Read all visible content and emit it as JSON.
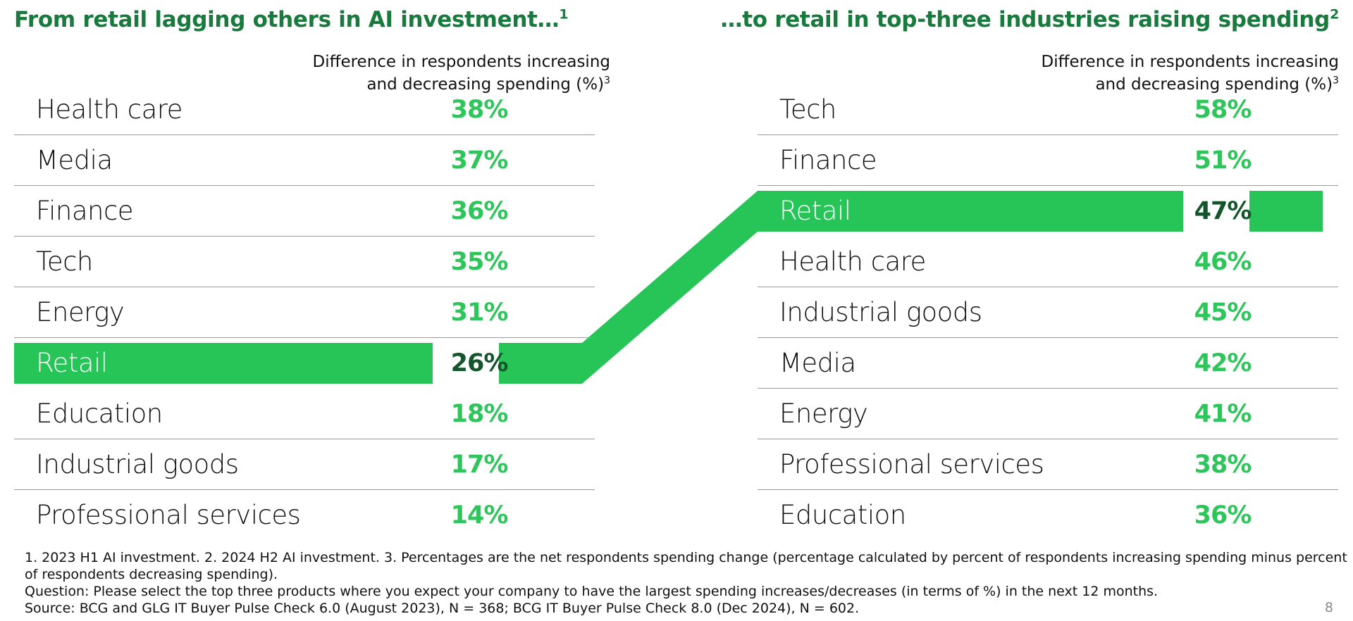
{
  "left": {
    "title": "From retail lagging others in AI investment…",
    "title_sup": "1",
    "subtitle_line1": "Difference in respondents increasing",
    "subtitle_line2": "and decreasing spending (%)",
    "subtitle_sup": "3"
  },
  "right": {
    "title": "…to retail in top-three industries raising spending",
    "title_sup": "2",
    "subtitle_line1": "Difference in respondents increasing",
    "subtitle_line2": "and decreasing spending (%)",
    "subtitle_sup": "3"
  },
  "chart_data": [
    {
      "type": "table",
      "title": "From retail lagging others in AI investment…",
      "value_label": "Difference in respondents increasing and decreasing spending (%)",
      "categories": [
        "Health care",
        "Media",
        "Finance",
        "Tech",
        "Energy",
        "Retail",
        "Education",
        "Industrial goods",
        "Professional services"
      ],
      "values": [
        38,
        37,
        36,
        35,
        31,
        26,
        18,
        17,
        14
      ],
      "display": [
        "38%",
        "37%",
        "36%",
        "35%",
        "31%",
        "26%",
        "18%",
        "17%",
        "14%"
      ],
      "highlight": "Retail"
    },
    {
      "type": "table",
      "title": "…to retail in top-three industries raising spending",
      "value_label": "Difference in respondents increasing and decreasing spending (%)",
      "categories": [
        "Tech",
        "Finance",
        "Retail",
        "Health care",
        "Industrial goods",
        "Media",
        "Energy",
        "Professional services",
        "Education"
      ],
      "values": [
        58,
        51,
        47,
        46,
        45,
        42,
        41,
        38,
        36
      ],
      "display": [
        "58%",
        "51%",
        "47%",
        "46%",
        "45%",
        "42%",
        "41%",
        "38%",
        "36%"
      ],
      "highlight": "Retail"
    }
  ],
  "colors": {
    "title": "#197a3e",
    "value": "#2ec55a",
    "highlight_fill": "#27c457",
    "highlight_value": "#14552b",
    "divider": "#9a9a9a"
  },
  "footnotes": {
    "line1": "1. 2023 H1 AI investment. 2. 2024 H2 AI investment. 3. Percentages are the net respondents spending change (percentage calculated by percent of respondents increasing spending minus percent",
    "line2": "of respondents decreasing spending).",
    "line3": "Question: Please select the top three products where you expect your company to have the largest spending increases/decreases (in terms of %) in the next 12 months.",
    "line4": "Source: BCG and GLG IT Buyer Pulse Check 6.0 (August 2023), N = 368; BCG IT Buyer Pulse Check 8.0 (Dec 2024), N = 602."
  },
  "page_number": "8"
}
